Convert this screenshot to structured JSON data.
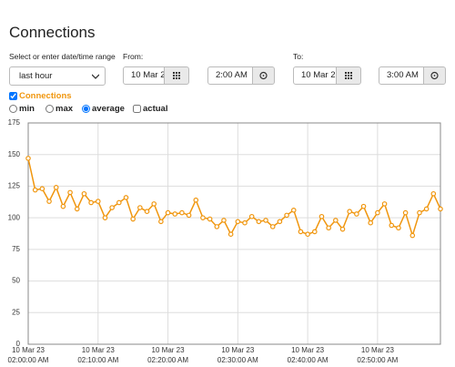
{
  "title": "Connections",
  "range": {
    "label": "Select or enter date/time range",
    "value": "last hour"
  },
  "from": {
    "label": "From:",
    "date": "10 Mar 2",
    "time": "2:00 AM"
  },
  "to": {
    "label": "To:",
    "date": "10 Mar 2",
    "time": "3:00 AM"
  },
  "series_toggle": {
    "checked": true
  },
  "modes": [
    {
      "label": "min",
      "kind": "radio",
      "checked": false
    },
    {
      "label": "max",
      "kind": "radio",
      "checked": false
    },
    {
      "label": "average",
      "kind": "radio",
      "checked": true
    },
    {
      "label": "actual",
      "kind": "checkbox",
      "checked": false
    }
  ],
  "chart_data": {
    "type": "line",
    "categories": [
      [
        "10 Mar 23",
        "02:00:00 AM"
      ],
      null,
      null,
      null,
      null,
      null,
      null,
      null,
      null,
      null,
      [
        "10 Mar 23",
        "02:10:00 AM"
      ],
      null,
      null,
      null,
      null,
      null,
      null,
      null,
      null,
      null,
      [
        "10 Mar 23",
        "02:20:00 AM"
      ],
      null,
      null,
      null,
      null,
      null,
      null,
      null,
      null,
      null,
      [
        "10 Mar 23",
        "02:30:00 AM"
      ],
      null,
      null,
      null,
      null,
      null,
      null,
      null,
      null,
      null,
      [
        "10 Mar 23",
        "02:40:00 AM"
      ],
      null,
      null,
      null,
      null,
      null,
      null,
      null,
      null,
      null,
      [
        "10 Mar 23",
        "02:50:00 AM"
      ],
      null,
      null,
      null,
      null,
      null,
      null,
      null,
      null,
      null
    ],
    "series": [
      {
        "name": "Connections",
        "color": "#f0960e",
        "values": [
          147,
          122,
          123,
          113,
          124,
          109,
          120,
          107,
          119,
          112,
          113,
          100,
          108,
          112,
          116,
          99,
          108,
          105,
          111,
          97,
          104,
          103,
          104,
          102,
          114,
          100,
          99,
          93,
          98,
          87,
          97,
          96,
          101,
          97,
          98,
          93,
          97,
          102,
          106,
          89,
          87,
          89,
          101,
          92,
          98,
          91,
          105,
          103,
          109,
          96,
          104,
          111,
          94,
          92,
          104,
          86,
          104,
          107,
          119,
          107
        ]
      }
    ],
    "ylim": [
      0,
      175
    ],
    "yticks": [
      0,
      25,
      50,
      75,
      100,
      125,
      150,
      175
    ],
    "grid": true
  }
}
